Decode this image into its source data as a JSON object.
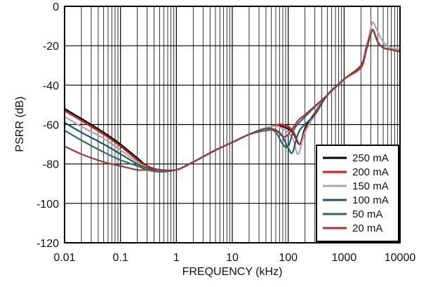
{
  "chart_data": {
    "type": "line",
    "title": "",
    "xlabel": "FREQUENCY (kHz)",
    "ylabel": "PSRR (dB)",
    "x_scale": "log",
    "xlim": [
      0.01,
      10000
    ],
    "ylim": [
      -120,
      0
    ],
    "x_ticks": [
      0.01,
      0.1,
      1,
      10,
      100,
      1000,
      10000
    ],
    "x_tick_labels": [
      "0.01",
      "0.1",
      "1",
      "10",
      "100",
      "1000",
      "10000"
    ],
    "y_ticks": [
      0,
      -20,
      -40,
      -60,
      -80,
      -100,
      -120
    ],
    "y_tick_labels": [
      "0",
      "-20",
      "-40",
      "-60",
      "-80",
      "-100",
      "-120"
    ],
    "grid": true,
    "legend_position": "bottom-right",
    "series": [
      {
        "name": "250 mA",
        "color": "#000000",
        "x": [
          0.01,
          0.02,
          0.05,
          0.1,
          0.2,
          0.3,
          0.5,
          1,
          2,
          5,
          10,
          20,
          50,
          80,
          120,
          160,
          200,
          300,
          500,
          1000,
          2000,
          2500,
          3000,
          3300,
          4000,
          5000,
          7000,
          10000
        ],
        "y": [
          -52,
          -57,
          -64,
          -70,
          -77,
          -81,
          -83,
          -83,
          -79,
          -73,
          -69,
          -65,
          -61,
          -61,
          -64,
          -70,
          -62,
          -54,
          -45,
          -37,
          -30,
          -22,
          -14,
          -12,
          -18,
          -21,
          -22,
          -23
        ]
      },
      {
        "name": "200 mA",
        "color": "#d4171b",
        "x": [
          0.01,
          0.02,
          0.05,
          0.1,
          0.2,
          0.3,
          0.5,
          1,
          2,
          5,
          10,
          20,
          50,
          80,
          120,
          160,
          200,
          300,
          500,
          1000,
          2000,
          2500,
          3000,
          3300,
          4000,
          5000,
          7000,
          10000
        ],
        "y": [
          -53,
          -58,
          -65,
          -71,
          -78,
          -81,
          -83,
          -83,
          -79,
          -73,
          -69,
          -65,
          -61,
          -60,
          -63,
          -70,
          -63,
          -54,
          -45,
          -37,
          -31,
          -22,
          -14,
          -12,
          -18,
          -21,
          -22,
          -23
        ]
      },
      {
        "name": "150 mA",
        "color": "#a8a8a8",
        "x": [
          0.01,
          0.02,
          0.05,
          0.1,
          0.2,
          0.3,
          0.5,
          1,
          2,
          5,
          10,
          20,
          50,
          80,
          120,
          150,
          200,
          300,
          500,
          1000,
          2000,
          2500,
          3000,
          3300,
          4000,
          5000,
          7000,
          10000
        ],
        "y": [
          -56,
          -61,
          -67,
          -73,
          -79,
          -82,
          -83,
          -83,
          -79,
          -73,
          -69,
          -65,
          -61,
          -62,
          -67,
          -75,
          -64,
          -55,
          -45,
          -37,
          -30,
          -21,
          -11,
          -8,
          -13,
          -18,
          -21,
          -22
        ]
      },
      {
        "name": "100 mA",
        "color": "#24566e",
        "x": [
          0.01,
          0.02,
          0.05,
          0.1,
          0.2,
          0.3,
          0.5,
          1,
          2,
          5,
          10,
          20,
          40,
          70,
          100,
          120,
          160,
          300,
          500,
          1000,
          2000,
          2500,
          3000,
          3300,
          4000,
          5000,
          7000,
          10000
        ],
        "y": [
          -59,
          -64,
          -70,
          -75,
          -80,
          -82,
          -83,
          -83,
          -79,
          -73,
          -69,
          -65,
          -62,
          -64,
          -72,
          -74,
          -63,
          -55,
          -45,
          -37,
          -30,
          -21,
          -14,
          -12,
          -18,
          -21,
          -22,
          -23
        ]
      },
      {
        "name": "50 mA",
        "color": "#2f6b55",
        "x": [
          0.01,
          0.02,
          0.05,
          0.1,
          0.2,
          0.3,
          0.5,
          1,
          2,
          5,
          10,
          20,
          40,
          60,
          80,
          100,
          130,
          200,
          500,
          1000,
          2000,
          2500,
          3000,
          3300,
          4000,
          5000,
          7000,
          10000
        ],
        "y": [
          -63,
          -68,
          -74,
          -78,
          -81,
          -83,
          -84,
          -83,
          -79,
          -73,
          -69,
          -65,
          -62,
          -64,
          -70,
          -71,
          -62,
          -56,
          -45,
          -37,
          -30,
          -21,
          -14,
          -12,
          -18,
          -21,
          -22,
          -23
        ]
      },
      {
        "name": "20 mA",
        "color": "#9c3a3c",
        "x": [
          0.01,
          0.02,
          0.05,
          0.1,
          0.2,
          0.3,
          0.5,
          1,
          2,
          5,
          10,
          20,
          40,
          60,
          80,
          100,
          150,
          200,
          500,
          1000,
          2000,
          2500,
          3000,
          3300,
          4000,
          5000,
          7000,
          10000
        ],
        "y": [
          -71,
          -75,
          -79,
          -81,
          -83,
          -83,
          -83,
          -83,
          -79,
          -73,
          -69,
          -65,
          -63,
          -63,
          -66,
          -65,
          -58,
          -55,
          -45,
          -37,
          -30,
          -21,
          -14,
          -12,
          -18,
          -21,
          -22,
          -23
        ]
      }
    ]
  }
}
